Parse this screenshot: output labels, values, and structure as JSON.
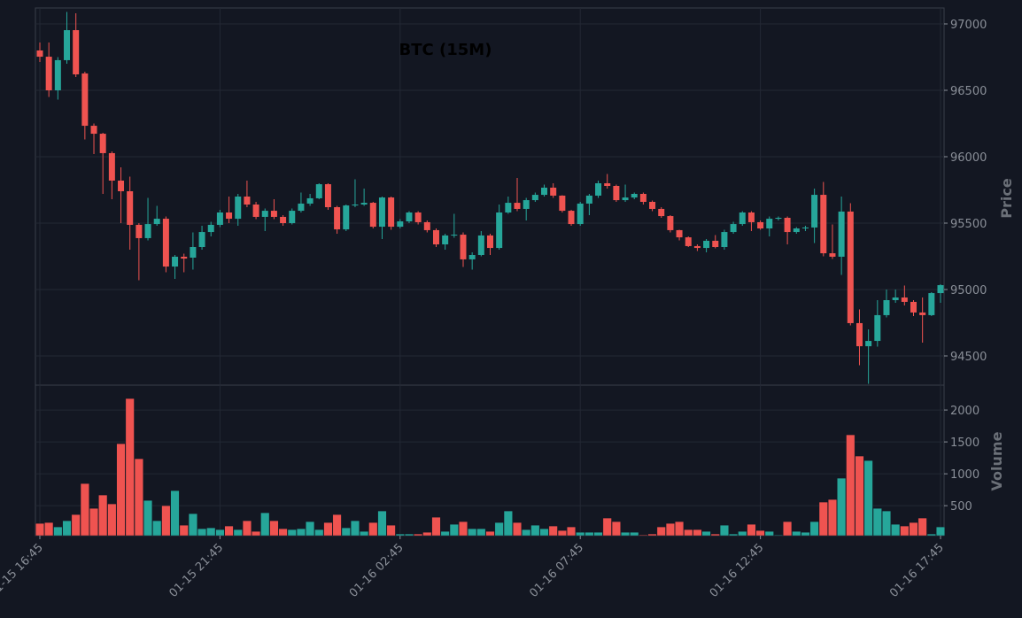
{
  "chart_data": {
    "type": "candlestick",
    "title": "BTC (15M)",
    "ylabel": "Price",
    "volume_label": "Volume",
    "up_color": "#26a69a",
    "down_color": "#ef5350",
    "grid": true,
    "categories": [
      "01-15 16:45",
      null,
      null,
      null,
      null,
      null,
      null,
      null,
      null,
      null,
      null,
      null,
      null,
      null,
      null,
      null,
      null,
      null,
      null,
      null,
      "01-15 21:45",
      null,
      null,
      null,
      null,
      null,
      null,
      null,
      null,
      null,
      null,
      null,
      null,
      null,
      null,
      null,
      null,
      null,
      null,
      null,
      "01-16 02:45",
      null,
      null,
      null,
      null,
      null,
      null,
      null,
      null,
      null,
      null,
      null,
      null,
      null,
      null,
      null,
      null,
      null,
      null,
      null,
      "01-16 07:45",
      null,
      null,
      null,
      null,
      null,
      null,
      null,
      null,
      null,
      null,
      null,
      null,
      null,
      null,
      null,
      null,
      null,
      null,
      null,
      "01-16 12:45",
      null,
      null,
      null,
      null,
      null,
      null,
      null,
      null,
      null,
      null,
      null,
      null,
      null,
      null,
      null,
      null,
      null,
      null,
      null,
      "01-16 17:45"
    ],
    "open": [
      96800,
      96753,
      96500,
      96727,
      96953,
      96627,
      96233,
      96173,
      96027,
      95820,
      95740,
      95487,
      95387,
      95493,
      95533,
      95173,
      95247,
      95240,
      95320,
      95433,
      95487,
      95580,
      95533,
      95700,
      95640,
      95547,
      95593,
      95547,
      95500,
      95593,
      95647,
      95687,
      95793,
      95620,
      95453,
      95633,
      95640,
      95653,
      95473,
      95693,
      95473,
      95513,
      95580,
      95507,
      95447,
      95340,
      95407,
      95413,
      95227,
      95260,
      95407,
      95313,
      95580,
      95653,
      95607,
      95673,
      95713,
      95767,
      95707,
      95593,
      95493,
      95647,
      95707,
      95800,
      95780,
      95673,
      95693,
      95720,
      95660,
      95607,
      95553,
      95447,
      95393,
      95327,
      95313,
      95367,
      95320,
      95433,
      95493,
      95580,
      95507,
      95460,
      95533,
      95540,
      95433,
      95460,
      95467,
      95713,
      95273,
      95247,
      95587,
      94747,
      94573,
      94613,
      94807,
      94920,
      94940,
      94907,
      94827,
      94807,
      94973
    ],
    "high": [
      96860,
      96860,
      96750,
      97090,
      97080,
      96640,
      96250,
      96180,
      96040,
      95920,
      95850,
      95500,
      95690,
      95630,
      95550,
      95260,
      95270,
      95430,
      95480,
      95510,
      95600,
      95700,
      95720,
      95820,
      95660,
      95610,
      95680,
      95560,
      95610,
      95730,
      95720,
      95800,
      95800,
      95630,
      95640,
      95830,
      95760,
      95660,
      95700,
      95700,
      95530,
      95590,
      95590,
      95520,
      95460,
      95420,
      95570,
      95430,
      95280,
      95440,
      95420,
      95640,
      95700,
      95840,
      95690,
      95730,
      95790,
      95800,
      95710,
      95600,
      95660,
      95720,
      95820,
      95870,
      95790,
      95790,
      95730,
      95730,
      95670,
      95620,
      95560,
      95450,
      95400,
      95340,
      95380,
      95410,
      95450,
      95510,
      95590,
      95590,
      95520,
      95550,
      95550,
      95550,
      95470,
      95480,
      95760,
      95810,
      95490,
      95700,
      95650,
      94850,
      94700,
      94920,
      95000,
      95000,
      95030,
      94920,
      94940,
      94980,
      95040
    ],
    "low": [
      96713,
      96450,
      96430,
      96700,
      96600,
      96130,
      96020,
      95720,
      95680,
      95500,
      95300,
      95070,
      95370,
      95480,
      95130,
      95080,
      95130,
      95150,
      95300,
      95400,
      95470,
      95500,
      95480,
      95620,
      95530,
      95440,
      95530,
      95480,
      95490,
      95580,
      95630,
      95680,
      95600,
      95420,
      95440,
      95620,
      95630,
      95460,
      95380,
      95450,
      95460,
      95500,
      95490,
      95430,
      95320,
      95300,
      95390,
      95170,
      95150,
      95250,
      95260,
      95300,
      95570,
      95590,
      95520,
      95660,
      95700,
      95690,
      95580,
      95480,
      95480,
      95560,
      95690,
      95760,
      95660,
      95660,
      95680,
      95640,
      95590,
      95540,
      95430,
      95370,
      95320,
      95290,
      95280,
      95310,
      95300,
      95420,
      95480,
      95440,
      95450,
      95400,
      95520,
      95340,
      95420,
      95440,
      95350,
      95250,
      95230,
      95110,
      94730,
      94430,
      94290,
      94570,
      94790,
      94900,
      94880,
      94800,
      94600,
      94800,
      94900
    ],
    "close": [
      96753,
      96500,
      96727,
      96953,
      96620,
      96233,
      96173,
      96027,
      95820,
      95740,
      95487,
      95387,
      95493,
      95533,
      95173,
      95247,
      95233,
      95320,
      95433,
      95487,
      95580,
      95533,
      95700,
      95640,
      95547,
      95593,
      95547,
      95500,
      95593,
      95647,
      95687,
      95793,
      95620,
      95453,
      95633,
      95640,
      95653,
      95473,
      95693,
      95473,
      95513,
      95580,
      95507,
      95447,
      95340,
      95407,
      95413,
      95227,
      95260,
      95407,
      95313,
      95580,
      95653,
      95607,
      95673,
      95713,
      95767,
      95707,
      95593,
      95493,
      95647,
      95707,
      95800,
      95780,
      95673,
      95693,
      95720,
      95660,
      95607,
      95553,
      95447,
      95393,
      95327,
      95313,
      95367,
      95320,
      95433,
      95493,
      95580,
      95507,
      95460,
      95533,
      95540,
      95433,
      95460,
      95467,
      95713,
      95273,
      95247,
      95587,
      94747,
      94573,
      94613,
      94807,
      94920,
      94940,
      94907,
      94827,
      94807,
      94973,
      95033
    ],
    "volume": [
      222,
      236,
      167,
      264,
      361,
      847,
      458,
      667,
      528,
      1472,
      2180,
      1236,
      583,
      264,
      500,
      736,
      194,
      375,
      139,
      153,
      125,
      181,
      125,
      264,
      97,
      389,
      264,
      139,
      125,
      139,
      250,
      125,
      236,
      361,
      153,
      264,
      97,
      236,
      417,
      194,
      56,
      56,
      56,
      83,
      319,
      97,
      208,
      250,
      139,
      139,
      97,
      236,
      417,
      236,
      125,
      194,
      139,
      181,
      111,
      167,
      83,
      83,
      83,
      306,
      250,
      83,
      83,
      42,
      56,
      167,
      222,
      250,
      125,
      125,
      97,
      56,
      194,
      56,
      97,
      208,
      111,
      97,
      40,
      250,
      97,
      83,
      250,
      556,
      597,
      931,
      1611,
      1278,
      1208,
      458,
      417,
      208,
      181,
      236,
      306,
      56,
      167
    ],
    "ylim": [
      94280,
      97120
    ],
    "yticks": [
      94500,
      95000,
      95500,
      96000,
      96500,
      97000
    ],
    "volume_ylim": [
      30,
      2390
    ],
    "volume_yticks": [
      500,
      1000,
      1500,
      2000
    ]
  }
}
